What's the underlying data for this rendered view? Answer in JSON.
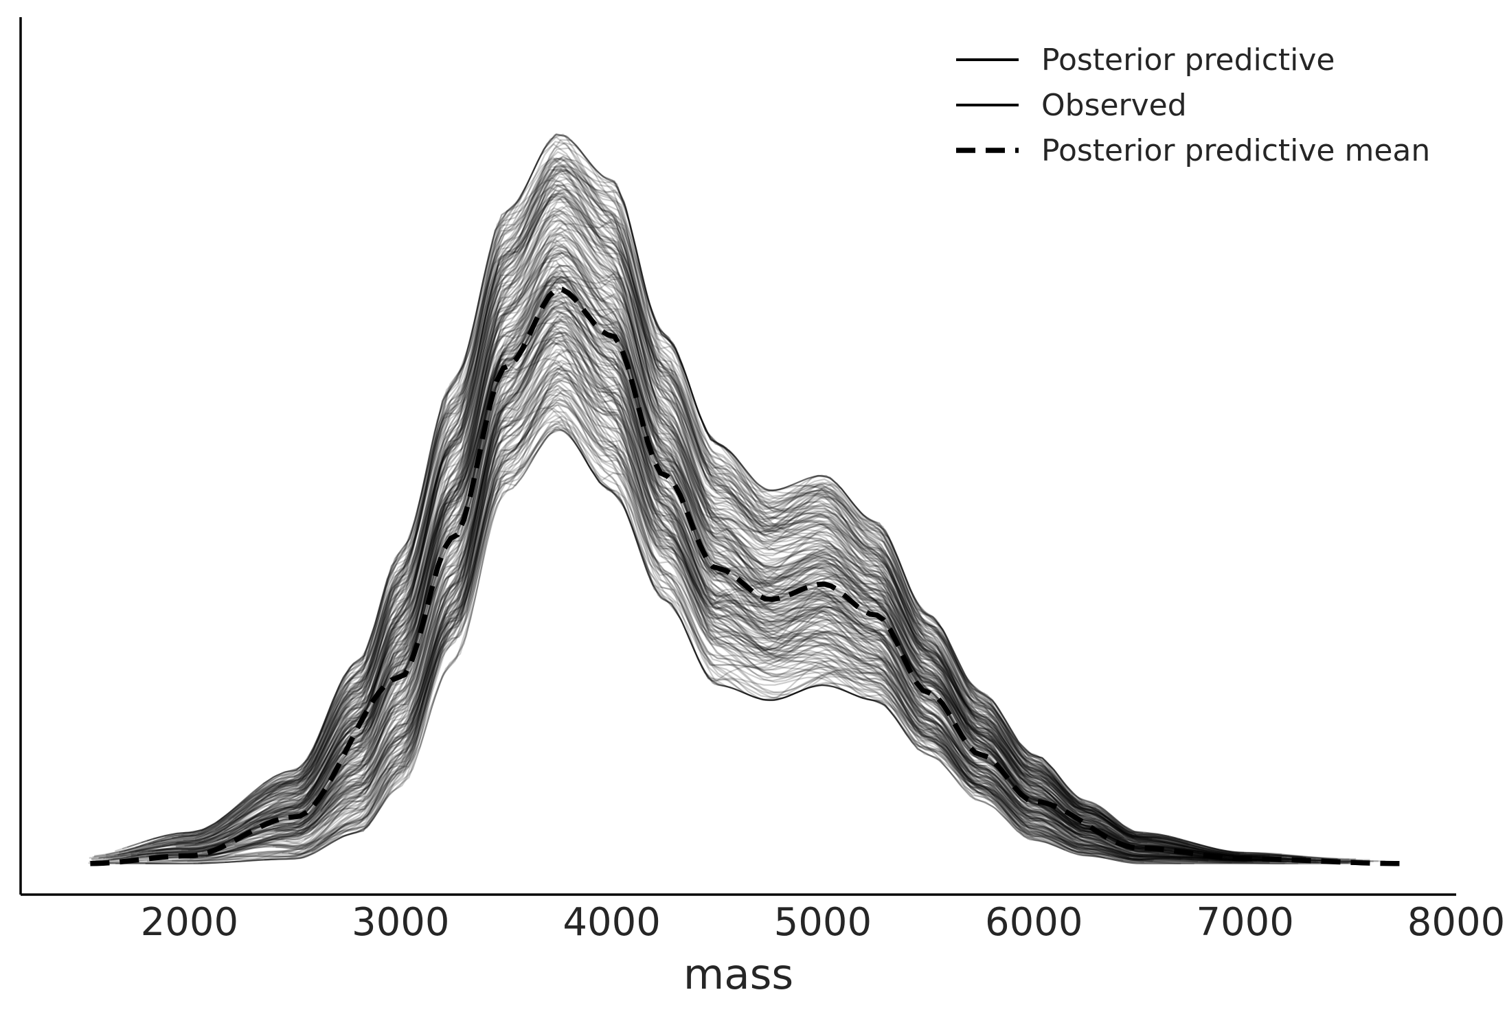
{
  "chart_data": {
    "type": "line",
    "xlabel": "mass",
    "ylabel": "",
    "xlim": [
      1200,
      8000
    ],
    "ylim": [
      -2e-05,
      0.000545
    ],
    "grid": false,
    "y_ticks_shown": false,
    "legend_placement": "top-right",
    "x_ticks": [
      2000,
      3000,
      4000,
      5000,
      6000,
      7000,
      8000
    ],
    "x_tick_labels": [
      "2000",
      "3000",
      "4000",
      "5000",
      "6000",
      "7000",
      "8000"
    ],
    "legend": [
      {
        "label": "Posterior predictive",
        "style": "solid",
        "color": "#000000"
      },
      {
        "label": "Observed",
        "style": "solid",
        "color": "#000000"
      },
      {
        "label": "Posterior predictive mean",
        "style": "dashed",
        "color": "#000000"
      }
    ],
    "series": [
      {
        "name": "Posterior predictive",
        "style": "solid",
        "color": "#000000",
        "alpha": 0.2,
        "approx_band_x": [
          1500,
          2000,
          2500,
          2800,
          3000,
          3250,
          3500,
          3750,
          4000,
          4250,
          4500,
          4750,
          5000,
          5250,
          5500,
          5750,
          6000,
          6250,
          6500,
          7000,
          7500
        ],
        "approx_band_lower": [
          0,
          0,
          3e-06,
          2e-05,
          5e-05,
          0.00013,
          0.00024,
          0.00028,
          0.00024,
          0.00017,
          0.000115,
          0.000105,
          0.000115,
          0.000105,
          7e-05,
          4e-05,
          1.5e-05,
          5e-06,
          0,
          0,
          0
        ],
        "approx_band_upper": [
          5e-06,
          2e-05,
          6e-05,
          0.00013,
          0.0002,
          0.00031,
          0.00042,
          0.00047,
          0.00044,
          0.00034,
          0.00027,
          0.00024,
          0.00025,
          0.00022,
          0.00016,
          0.00011,
          7e-05,
          4e-05,
          2e-05,
          7e-06,
          3e-06
        ]
      },
      {
        "name": "Observed",
        "style": "solid",
        "color": "#000000"
      },
      {
        "name": "Posterior predictive mean",
        "style": "dashed",
        "color": "#000000",
        "x": [
          1530,
          2000,
          2500,
          3000,
          3250,
          3500,
          3750,
          4000,
          4250,
          4500,
          4750,
          5000,
          5250,
          5500,
          5750,
          6000,
          6500,
          7000,
          7740
        ],
        "y": [
          0,
          5e-06,
          3e-05,
          0.00012,
          0.00021,
          0.00032,
          0.00037,
          0.00034,
          0.00025,
          0.00019,
          0.00017,
          0.00018,
          0.00016,
          0.00011,
          7e-05,
          4e-05,
          1e-05,
          3e-06,
          0
        ]
      }
    ]
  }
}
